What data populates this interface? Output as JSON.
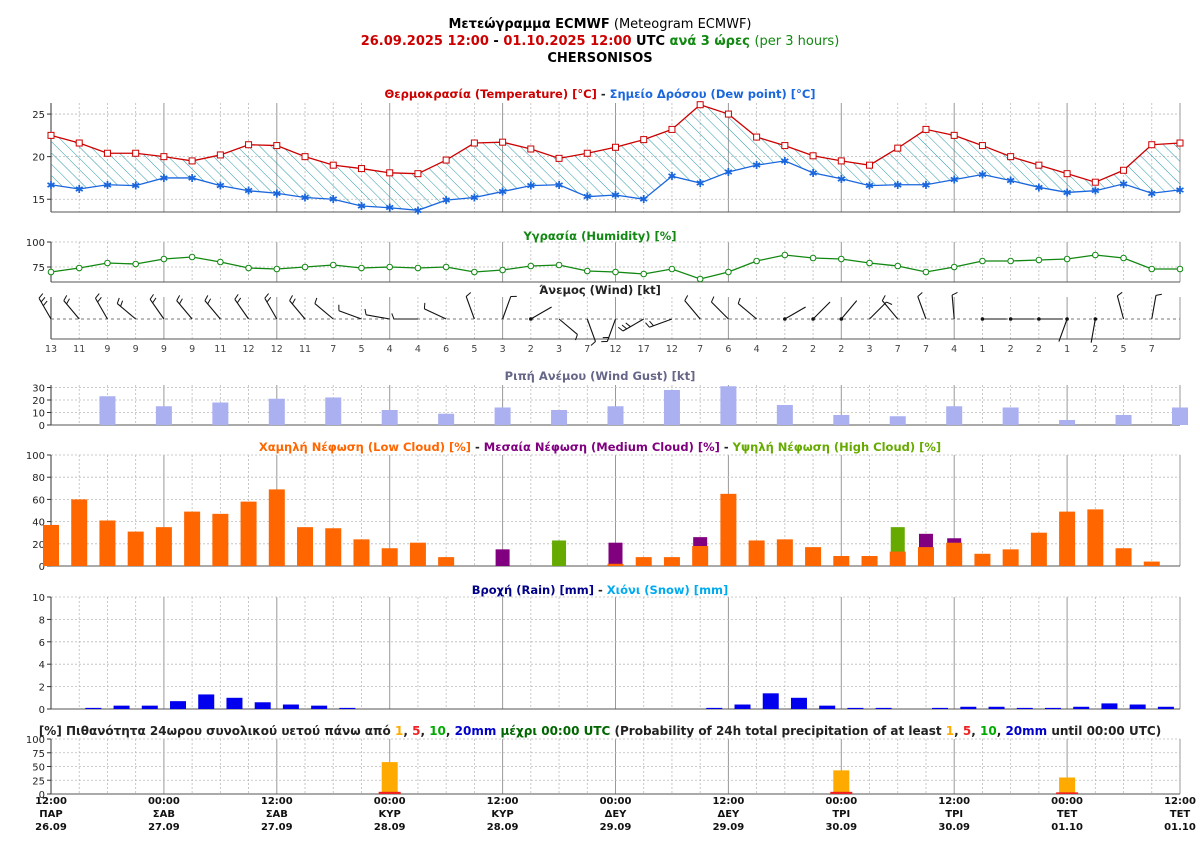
{
  "header": {
    "title_gr": "Μετεώγραμμα ECMWF",
    "title_en": "(Meteogram ECMWF)",
    "date_from": "26.09.2025 12:00",
    "dash": "-",
    "date_to": "01.10.2025 12:00",
    "utc": "UTC",
    "step_gr": "ανά 3 ώρες",
    "step_en": "(per 3 hours)",
    "location": "CHERSONISOS"
  },
  "colors": {
    "temperature": "#cc0000",
    "dewpoint": "#1a66dd",
    "humidity": "#118811",
    "gust": "#aab0f0",
    "low_cloud": "#ff6600",
    "medium_cloud": "#800080",
    "high_cloud": "#66aa00",
    "rain": "#0000ee",
    "snow": "#00aaee",
    "prob1": "#ffaa00",
    "prob5": "#ee2222",
    "prob10": "#00aa00",
    "prob20": "#0000cc"
  },
  "panel_titles": {
    "temp": [
      {
        "t": "Θερμοκρασία (Temperature) [°C]",
        "c": "temperature"
      },
      {
        "t": " - ",
        "c": "dark"
      },
      {
        "t": "Σημείο Δρόσου (Dew point) [°C]",
        "c": "dewpoint"
      }
    ],
    "humidity": [
      {
        "t": "Υγρασία (Humidity) [%]",
        "c": "humidity"
      }
    ],
    "wind": [
      {
        "t": "Άνεμος (Wind) [kt]",
        "c": "dark"
      }
    ],
    "gust": [
      {
        "t": "Ριπή Ανέμου (Wind Gust) [kt]",
        "c": "gustlabel"
      }
    ],
    "cloud": [
      {
        "t": "Χαμηλή Νέφωση (Low Cloud) [%]",
        "c": "low_cloud"
      },
      {
        "t": " - ",
        "c": "dark"
      },
      {
        "t": "Μεσαία Νέφωση (Medium Cloud) [%]",
        "c": "medium_cloud"
      },
      {
        "t": " - ",
        "c": "dark"
      },
      {
        "t": "Υψηλή Νέφωση (High Cloud) [%]",
        "c": "high_cloud"
      }
    ],
    "rain": [
      {
        "t": "Βροχή (Rain) [mm]",
        "c": "rainlabel"
      },
      {
        "t": " - ",
        "c": "dark"
      },
      {
        "t": "Χιόνι (Snow) [mm]",
        "c": "snow"
      }
    ],
    "prob": [
      {
        "t": "[%] Πιθανότητα 24ωρου συνολικού υετού πάνω από ",
        "c": "dark",
        "b": true
      },
      {
        "t": "1",
        "c": "prob1",
        "b": true
      },
      {
        "t": ", ",
        "c": "dark",
        "b": true
      },
      {
        "t": "5",
        "c": "prob5",
        "b": true
      },
      {
        "t": ", ",
        "c": "dark",
        "b": true
      },
      {
        "t": "10",
        "c": "prob10",
        "b": true
      },
      {
        "t": ", ",
        "c": "dark",
        "b": true
      },
      {
        "t": "20mm",
        "c": "prob20",
        "b": true
      },
      {
        "t": " μέχρι 00:00 UTC",
        "c": "darkgreen",
        "b": true
      },
      {
        "t": " (Probability of 24h total precipitation of at least ",
        "c": "dark"
      },
      {
        "t": "1",
        "c": "prob1"
      },
      {
        "t": ", ",
        "c": "dark"
      },
      {
        "t": "5",
        "c": "prob5"
      },
      {
        "t": ", ",
        "c": "dark"
      },
      {
        "t": "10",
        "c": "prob10"
      },
      {
        "t": ", ",
        "c": "dark"
      },
      {
        "t": "20mm",
        "c": "prob20"
      },
      {
        "t": " until 00:00 UTC)",
        "c": "dark"
      }
    ]
  },
  "chart_data": {
    "type": "line",
    "time_step_hours": 3,
    "x_ticks": [
      {
        "time": "12:00",
        "day": "ΠΑΡ",
        "date": "26.09"
      },
      {
        "time": "00:00",
        "day": "ΣΑΒ",
        "date": "27.09"
      },
      {
        "time": "12:00",
        "day": "ΣΑΒ",
        "date": "27.09"
      },
      {
        "time": "00:00",
        "day": "ΚΥΡ",
        "date": "28.09"
      },
      {
        "time": "12:00",
        "day": "ΚΥΡ",
        "date": "28.09"
      },
      {
        "time": "00:00",
        "day": "ΔΕΥ",
        "date": "29.09"
      },
      {
        "time": "12:00",
        "day": "ΔΕΥ",
        "date": "29.09"
      },
      {
        "time": "00:00",
        "day": "ΤΡΙ",
        "date": "30.09"
      },
      {
        "time": "12:00",
        "day": "ΤΡΙ",
        "date": "30.09"
      },
      {
        "time": "00:00",
        "day": "ΤΕΤ",
        "date": "01.10"
      },
      {
        "time": "12:00",
        "day": "ΤΕΤ",
        "date": "01.10"
      }
    ],
    "temperature": {
      "yticks": [
        15,
        20,
        25
      ],
      "ylim": [
        13.5,
        26.3
      ],
      "values": [
        22.5,
        21.6,
        20.4,
        20.4,
        20.0,
        19.5,
        20.2,
        21.4,
        21.3,
        20.0,
        19.0,
        18.6,
        18.1,
        18.0,
        19.6,
        21.6,
        21.7,
        20.9,
        19.8,
        20.4,
        21.1,
        22.0,
        23.2,
        26.1,
        25.0,
        22.3,
        21.3,
        20.1,
        19.5,
        19.0,
        21.0,
        23.2,
        22.5,
        21.3,
        20.0,
        19.0,
        18.0,
        17.0,
        18.4,
        21.4,
        21.6
      ]
    },
    "dewpoint": {
      "values": [
        16.7,
        16.2,
        16.7,
        16.6,
        17.5,
        17.5,
        16.6,
        16.0,
        15.7,
        15.2,
        15.0,
        14.2,
        14.0,
        13.7,
        14.9,
        15.2,
        15.9,
        16.6,
        16.7,
        15.3,
        15.5,
        15.0,
        17.7,
        16.9,
        18.2,
        19.0,
        19.5,
        18.1,
        17.4,
        16.6,
        16.7,
        16.7,
        17.3,
        17.9,
        17.2,
        16.4,
        15.8,
        16.0,
        16.8,
        15.7,
        16.1
      ]
    },
    "humidity": {
      "yticks": [
        75,
        100
      ],
      "ylim": [
        60,
        100
      ],
      "values": [
        70,
        74,
        79,
        78,
        83,
        85,
        80,
        74,
        73,
        75,
        77,
        74,
        75,
        74,
        75,
        70,
        72,
        76,
        77,
        71,
        70,
        68,
        73,
        63,
        70,
        81,
        87,
        84,
        83,
        79,
        76,
        70,
        75,
        81,
        81,
        82,
        83,
        87,
        84,
        73,
        73
      ]
    },
    "wind_speed": [
      13,
      11,
      9,
      9,
      9,
      9,
      11,
      12,
      12,
      11,
      7,
      5,
      4,
      4,
      6,
      5,
      3,
      2,
      3,
      7,
      12,
      17,
      12,
      7,
      6,
      4,
      2,
      2,
      2,
      3,
      7,
      7,
      4,
      1,
      2,
      2,
      1,
      2,
      5,
      7
    ],
    "wind_dir": [
      330,
      320,
      330,
      310,
      325,
      320,
      320,
      325,
      330,
      320,
      310,
      290,
      280,
      270,
      295,
      340,
      20,
      60,
      130,
      160,
      200,
      240,
      250,
      320,
      315,
      310,
      60,
      45,
      40,
      45,
      320,
      340,
      355,
      90,
      90,
      90,
      200,
      190,
      345,
      10
    ],
    "gust": {
      "yticks": [
        0,
        10,
        20,
        30
      ],
      "ylim": [
        0,
        32
      ],
      "values": [
        null,
        null,
        23,
        null,
        15,
        null,
        18,
        null,
        21,
        null,
        22,
        null,
        12,
        null,
        9,
        null,
        14,
        null,
        12,
        null,
        15,
        null,
        28,
        null,
        31,
        null,
        16,
        null,
        8,
        null,
        7,
        null,
        15,
        null,
        14,
        null,
        4,
        null,
        8,
        null,
        14
      ]
    },
    "low_cloud": {
      "yticks": [
        0,
        20,
        40,
        60,
        80,
        100
      ],
      "ylim": [
        0,
        100
      ],
      "values": [
        37,
        60,
        41,
        31,
        35,
        49,
        47,
        58,
        69,
        35,
        34,
        24,
        16,
        21,
        8,
        0,
        0,
        0,
        0,
        0,
        2,
        8,
        8,
        18,
        65,
        23,
        24,
        17,
        9,
        9,
        13,
        17,
        21,
        11,
        15,
        30,
        49,
        51,
        16,
        4
      ]
    },
    "medium_cloud": {
      "values": [
        0,
        0,
        0,
        0,
        0,
        0,
        0,
        0,
        0,
        0,
        0,
        0,
        0,
        0,
        0,
        0,
        15,
        0,
        0,
        0,
        21,
        0,
        0,
        26,
        0,
        0,
        0,
        0,
        0,
        0,
        0,
        29,
        25,
        0,
        0,
        0,
        0,
        0,
        0,
        0
      ]
    },
    "high_cloud": {
      "values": [
        0,
        0,
        0,
        0,
        0,
        0,
        0,
        0,
        0,
        0,
        0,
        0,
        0,
        0,
        0,
        0,
        0,
        0,
        23,
        0,
        7,
        0,
        0,
        0,
        0,
        0,
        0,
        0,
        0,
        0,
        35,
        0,
        0,
        0,
        0,
        0,
        0,
        0,
        0,
        0
      ]
    },
    "rain": {
      "yticks": [
        0,
        2,
        4,
        6,
        8,
        10
      ],
      "ylim": [
        0,
        10
      ],
      "values": [
        0,
        0.1,
        0.3,
        0.3,
        0.7,
        1.3,
        1.0,
        0.6,
        0.4,
        0.3,
        0.1,
        0,
        0,
        0,
        0,
        0,
        0,
        0,
        0,
        0,
        0,
        0,
        0,
        0.1,
        0.4,
        1.4,
        1.0,
        0.3,
        0.1,
        0.1,
        0,
        0.1,
        0.2,
        0.2,
        0.1,
        0.1,
        0.2,
        0.5,
        0.4,
        0.2
      ]
    },
    "snow": {
      "values": [
        0,
        0,
        0,
        0,
        0,
        0,
        0,
        0,
        0,
        0,
        0,
        0,
        0,
        0,
        0,
        0,
        0,
        0,
        0,
        0,
        0,
        0,
        0,
        0,
        0,
        0,
        0,
        0,
        0,
        0,
        0,
        0,
        0,
        0,
        0,
        0,
        0,
        0,
        0,
        0
      ]
    },
    "precip_probability": {
      "yticks": [
        0,
        25,
        50,
        75,
        100
      ],
      "ylim": [
        0,
        100
      ],
      "entries": [
        {
          "tick": 3,
          "p1": 58,
          "p5": 4,
          "p10": 0,
          "p20": 0
        },
        {
          "tick": 7,
          "p1": 43,
          "p5": 4,
          "p10": 0,
          "p20": 0
        },
        {
          "tick": 9,
          "p1": 30,
          "p5": 3,
          "p10": 0,
          "p20": 0
        }
      ]
    }
  }
}
